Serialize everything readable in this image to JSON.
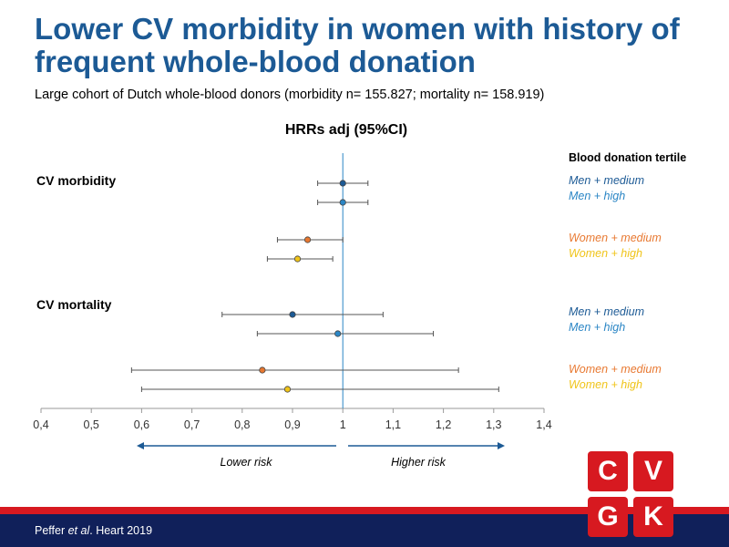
{
  "slide": {
    "title": "Lower CV morbidity in women with history of frequent whole-blood donation",
    "subtitle": "Large cohort of Dutch whole-blood donors (morbidity n= 155.827; mortality n= 158.919)",
    "citation_prefix": "Peffer ",
    "citation_italic": "et al",
    "citation_suffix": ". Heart 2019",
    "logo_letters": [
      "C",
      "V",
      "G",
      "K"
    ]
  },
  "colors": {
    "title": "#1c5a95",
    "men_medium": "#1c5a95",
    "men_high": "#2b86c5",
    "women_medium": "#e87830",
    "women_high": "#f0c419",
    "footer_red": "#d71920",
    "footer_blue": "#10205a"
  },
  "chart_data": {
    "type": "forest",
    "title": "HRRs adj (95%CI)",
    "legend_title": "Blood donation tertile",
    "xlim": [
      0.4,
      1.4
    ],
    "x_ticks": [
      "0,4",
      "0,5",
      "0,6",
      "0,7",
      "0,8",
      "0,9",
      "1",
      "1,1",
      "1,2",
      "1,3",
      "1,4"
    ],
    "reference_line": 1,
    "direction_labels": {
      "left": "Lower risk",
      "right": "Higher risk"
    },
    "groups": [
      {
        "name": "CV morbidity",
        "series": [
          {
            "name": "Men + medium",
            "hr": 1.0,
            "lower": 0.95,
            "upper": 1.05,
            "color": "#1c5a95"
          },
          {
            "name": "Men + high",
            "hr": 1.0,
            "lower": 0.95,
            "upper": 1.05,
            "color": "#2b86c5"
          },
          {
            "name": "Women + medium",
            "hr": 0.93,
            "lower": 0.87,
            "upper": 1.0,
            "color": "#e87830"
          },
          {
            "name": "Women + high",
            "hr": 0.91,
            "lower": 0.85,
            "upper": 0.98,
            "color": "#f0c419"
          }
        ]
      },
      {
        "name": "CV mortality",
        "series": [
          {
            "name": "Men + medium",
            "hr": 0.9,
            "lower": 0.76,
            "upper": 1.08,
            "color": "#1c5a95"
          },
          {
            "name": "Men + high",
            "hr": 0.99,
            "lower": 0.83,
            "upper": 1.18,
            "color": "#2b86c5"
          },
          {
            "name": "Women + medium",
            "hr": 0.84,
            "lower": 0.58,
            "upper": 1.23,
            "color": "#e87830"
          },
          {
            "name": "Women + high",
            "hr": 0.89,
            "lower": 0.6,
            "upper": 1.31,
            "color": "#f0c419"
          }
        ]
      }
    ]
  }
}
